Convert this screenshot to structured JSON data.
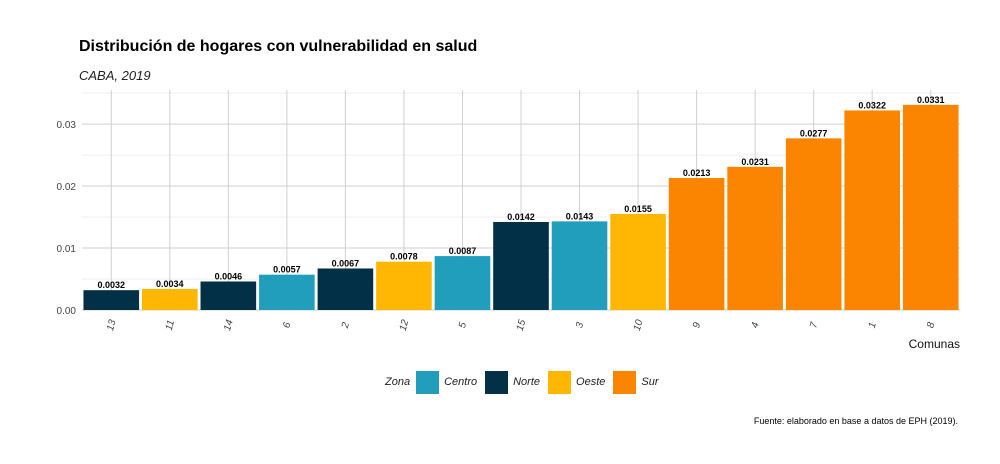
{
  "chart_data": {
    "type": "bar",
    "title": "Distribución de hogares con vulnerabilidad en salud",
    "subtitle": "CABA, 2019",
    "xlabel": "Comunas",
    "ylabel": "",
    "caption": "Fuente: elaborado en base a datos de EPH (2019).",
    "categories": [
      "13",
      "11",
      "14",
      "6",
      "2",
      "12",
      "5",
      "15",
      "3",
      "10",
      "9",
      "4",
      "7",
      "1",
      "8"
    ],
    "values": [
      0.0032,
      0.0034,
      0.0046,
      0.0057,
      0.0067,
      0.0078,
      0.0087,
      0.0142,
      0.0143,
      0.0155,
      0.0213,
      0.0231,
      0.0277,
      0.0322,
      0.0331
    ],
    "value_labels": [
      "0.0032",
      "0.0034",
      "0.0046",
      "0.0057",
      "0.0067",
      "0.0078",
      "0.0087",
      "0.0142",
      "0.0143",
      "0.0155",
      "0.0213",
      "0.0231",
      "0.0277",
      "0.0322",
      "0.0331"
    ],
    "zones": [
      "Norte",
      "Oeste",
      "Norte",
      "Centro",
      "Norte",
      "Oeste",
      "Centro",
      "Norte",
      "Centro",
      "Oeste",
      "Sur",
      "Sur",
      "Sur",
      "Sur",
      "Sur"
    ],
    "ylim": [
      0,
      0.0355
    ],
    "yticks": [
      0,
      0.01,
      0.02,
      0.03
    ],
    "ytick_labels": [
      "0.00",
      "0.01",
      "0.02",
      "0.03"
    ],
    "grid": true,
    "legend": {
      "title": "Zona",
      "position": "bottom",
      "items": [
        {
          "name": "Centro",
          "color": "#219EBC"
        },
        {
          "name": "Norte",
          "color": "#023047"
        },
        {
          "name": "Oeste",
          "color": "#FFB703"
        },
        {
          "name": "Sur",
          "color": "#FB8500"
        }
      ]
    }
  }
}
